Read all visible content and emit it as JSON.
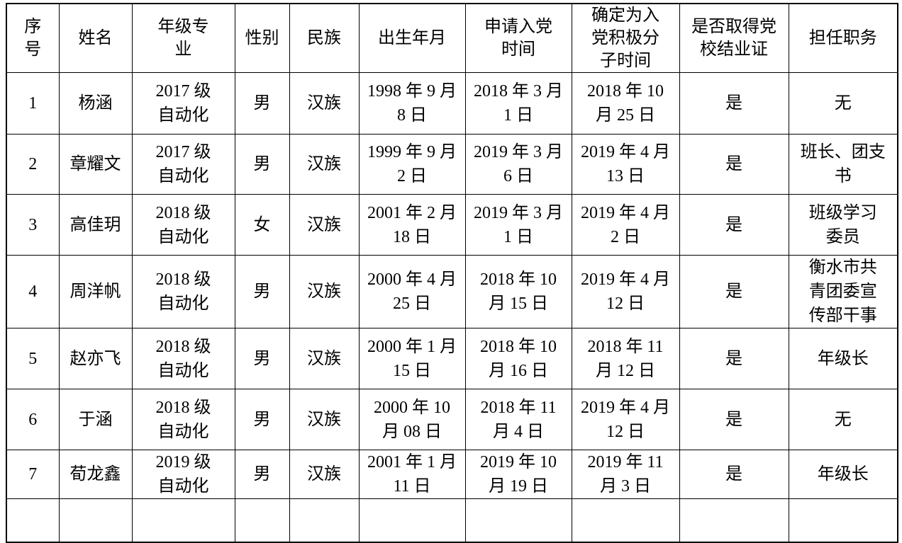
{
  "table": {
    "headers": [
      "序\n号",
      "姓名",
      "年级专\n业",
      "性别",
      "民族",
      "出生年月",
      "申请入党\n时间",
      "确定为入\n党积极分\n子时间",
      "是否取得党\n校结业证",
      "担任职务"
    ],
    "rows": [
      [
        "1",
        "杨涵",
        "2017 级\n自动化",
        "男",
        "汉族",
        "1998 年 9 月\n8 日",
        "2018 年 3 月\n1 日",
        "2018 年 10\n月 25 日",
        "是",
        "无"
      ],
      [
        "2",
        "章耀文",
        "2017 级\n自动化",
        "男",
        "汉族",
        "1999 年 9 月\n2 日",
        "2019 年 3 月\n6 日",
        "2019 年 4 月\n13 日",
        "是",
        "班长、团支\n书"
      ],
      [
        "3",
        "高佳玥",
        "2018 级\n自动化",
        "女",
        "汉族",
        "2001 年 2 月\n18 日",
        "2019 年 3 月\n1 日",
        "2019 年 4 月\n2 日",
        "是",
        "班级学习\n委员"
      ],
      [
        "4",
        "周洋帆",
        "2018 级\n自动化",
        "男",
        "汉族",
        "2000 年 4 月\n25 日",
        "2018 年 10\n月 15 日",
        "2019 年 4 月\n12 日",
        "是",
        "衡水市共\n青团委宣\n传部干事"
      ],
      [
        "5",
        "赵亦飞",
        "2018 级\n自动化",
        "男",
        "汉族",
        "2000 年 1 月\n15 日",
        "2018 年 10\n月 16 日",
        "2018 年 11\n月 12 日",
        "是",
        "年级长"
      ],
      [
        "6",
        "于涵",
        "2018 级\n自动化",
        "男",
        "汉族",
        "2000 年 10\n月 08 日",
        "2018 年 11\n月 4 日",
        "2019 年 4 月\n12 日",
        "是",
        "无"
      ],
      [
        "7",
        "荀龙鑫",
        "2019 级\n自动化",
        "男",
        "汉族",
        "2001 年 1 月\n11 日",
        "2019 年 10\n月 19 日",
        "2019 年 11\n月 3 日",
        "是",
        "年级长"
      ],
      [
        "",
        "",
        "",
        "",
        "",
        "",
        "",
        "",
        "",
        ""
      ]
    ]
  },
  "colors": {
    "background": "#ffffff",
    "border": "#000000",
    "text": "#000000"
  }
}
